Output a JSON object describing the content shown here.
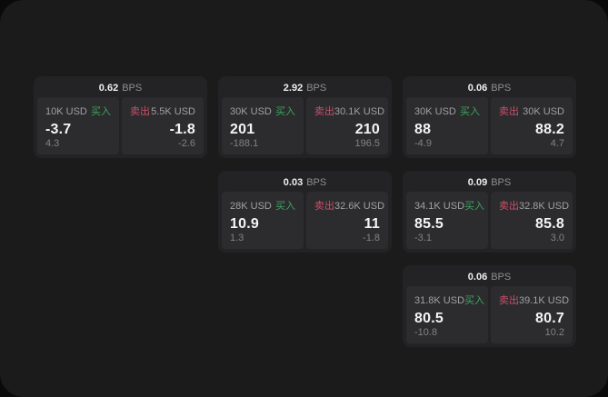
{
  "colors": {
    "panel-bg": "#1b1b1c",
    "card-bg": "#232325",
    "cell-bg": "#2c2c2e",
    "buy-green": "#3fa35f",
    "sell-red": "#c85069"
  },
  "labels": {
    "bps": "BPS",
    "buy": "买入",
    "sell": "卖出"
  },
  "cards": [
    {
      "row": 1,
      "col": 1,
      "bps": "0.62",
      "buy": {
        "amount": "10K USD",
        "value": "-3.7",
        "sub": "4.3"
      },
      "sell": {
        "amount": "5.5K USD",
        "value": "-1.8",
        "sub": "-2.6"
      }
    },
    {
      "row": 1,
      "col": 2,
      "bps": "2.92",
      "buy": {
        "amount": "30K USD",
        "value": "201",
        "sub": "-188.1"
      },
      "sell": {
        "amount": "30.1K USD",
        "value": "210",
        "sub": "196.5"
      }
    },
    {
      "row": 1,
      "col": 3,
      "bps": "0.06",
      "buy": {
        "amount": "30K USD",
        "value": "88",
        "sub": "-4.9"
      },
      "sell": {
        "amount": "30K USD",
        "value": "88.2",
        "sub": "4.7"
      }
    },
    {
      "row": 2,
      "col": 2,
      "bps": "0.03",
      "buy": {
        "amount": "28K USD",
        "value": "10.9",
        "sub": "1.3"
      },
      "sell": {
        "amount": "32.6K USD",
        "value": "11",
        "sub": "-1.8"
      }
    },
    {
      "row": 2,
      "col": 3,
      "bps": "0.09",
      "buy": {
        "amount": "34.1K USD",
        "value": "85.5",
        "sub": "-3.1"
      },
      "sell": {
        "amount": "32.8K USD",
        "value": "85.8",
        "sub": "3.0"
      }
    },
    {
      "row": 3,
      "col": 3,
      "bps": "0.06",
      "buy": {
        "amount": "31.8K USD",
        "value": "80.5",
        "sub": "-10.8"
      },
      "sell": {
        "amount": "39.1K USD",
        "value": "80.7",
        "sub": "10.2"
      }
    }
  ]
}
